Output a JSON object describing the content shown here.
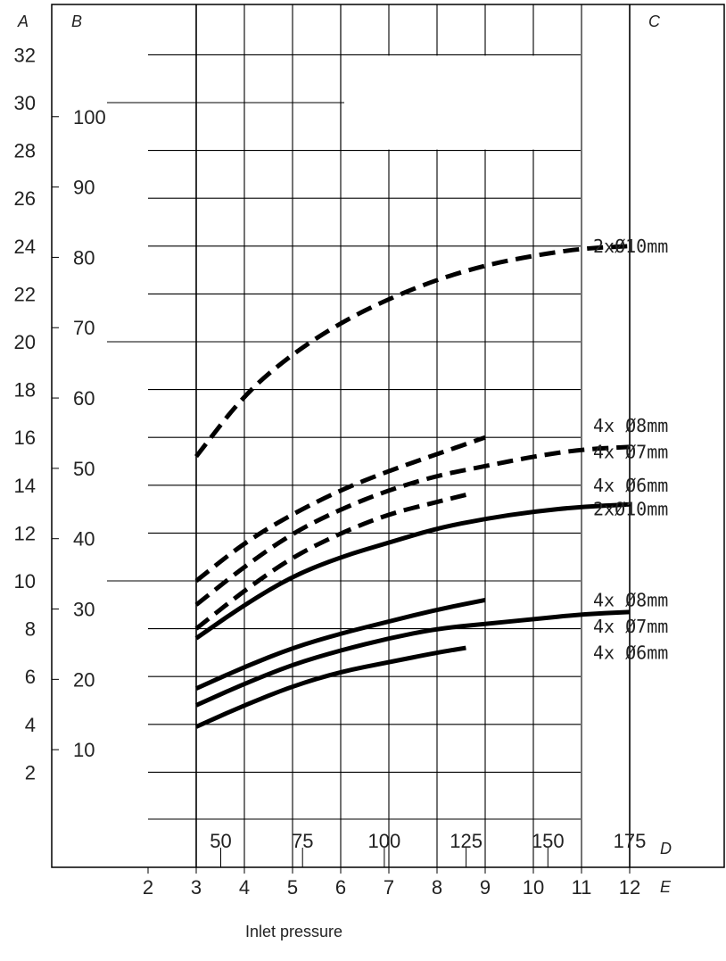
{
  "chart_data": {
    "type": "line",
    "corner_labels": {
      "a": "A",
      "b": "B",
      "c": "C",
      "d": "D",
      "e": "E"
    },
    "left_axis_a": {
      "ticks": [
        "2",
        "4",
        "6",
        "8",
        "10",
        "12",
        "14",
        "16",
        "18",
        "20",
        "22",
        "24",
        "26",
        "28",
        "30",
        "32"
      ],
      "range": [
        0,
        34
      ]
    },
    "left_axis_b": {
      "ticks": [
        "10",
        "20",
        "30",
        "40",
        "50",
        "60",
        "70",
        "80",
        "90",
        "100"
      ],
      "range": [
        0,
        115.6
      ]
    },
    "bottom_axis_d": {
      "ticks": [
        "50",
        "75",
        "100",
        "125",
        "150",
        "175"
      ],
      "range": [
        42.5,
        175
      ]
    },
    "bottom_axis_e": {
      "ticks": [
        "2",
        "3",
        "4",
        "5",
        "6",
        "7",
        "8",
        "9",
        "10",
        "11",
        "12"
      ],
      "range": [
        1,
        12
      ]
    },
    "xlabel": "Inlet pressure",
    "series": [
      {
        "name": "2xØ10mm",
        "style": "dashed",
        "label_y": 24,
        "x": [
          3,
          4,
          5,
          6,
          7,
          8,
          9,
          10,
          11,
          12
        ],
        "y": [
          15.2,
          17.8,
          19.5,
          20.8,
          21.8,
          22.6,
          23.2,
          23.6,
          23.9,
          24.0
        ]
      },
      {
        "name": "4x  Ø8mm",
        "style": "dashed",
        "label_y": 16.5,
        "x": [
          3,
          4,
          5,
          6,
          7,
          8,
          9
        ],
        "y": [
          10.0,
          11.6,
          12.8,
          13.8,
          14.6,
          15.3,
          16.0
        ]
      },
      {
        "name": "4x  Ø7mm",
        "style": "dashed",
        "label_y": 15.4,
        "x": [
          3,
          4,
          5,
          6,
          7,
          8,
          9,
          10,
          11,
          12
        ],
        "y": [
          9.0,
          10.6,
          12.0,
          13.0,
          13.8,
          14.4,
          14.8,
          15.2,
          15.5,
          15.6
        ]
      },
      {
        "name": "4x  Ø6mm",
        "style": "dashed",
        "label_y": 14.0,
        "x": [
          3,
          4,
          5,
          6,
          7,
          8,
          8.6
        ],
        "y": [
          8.0,
          9.6,
          11.0,
          12.0,
          12.8,
          13.3,
          13.6
        ]
      },
      {
        "name": "2xØ10mm",
        "style": "solid",
        "label_y": 13.0,
        "x": [
          3,
          4,
          5,
          6,
          7,
          8,
          9,
          10,
          11,
          12
        ],
        "y": [
          7.6,
          9.0,
          10.2,
          11.0,
          11.6,
          12.2,
          12.6,
          12.9,
          13.1,
          13.2
        ]
      },
      {
        "name": "4x  Ø8mm",
        "style": "solid",
        "label_y": 9.2,
        "x": [
          3,
          4,
          5,
          6,
          7,
          8,
          9
        ],
        "y": [
          5.5,
          6.4,
          7.2,
          7.8,
          8.3,
          8.8,
          9.2
        ]
      },
      {
        "name": "4x  Ø7mm",
        "style": "solid",
        "label_y": 8.1,
        "x": [
          3,
          4,
          5,
          6,
          7,
          8,
          9,
          10,
          11,
          12
        ],
        "y": [
          4.8,
          5.7,
          6.5,
          7.1,
          7.6,
          8.0,
          8.2,
          8.4,
          8.6,
          8.7
        ]
      },
      {
        "name": "4x  Ø6mm",
        "style": "solid",
        "label_y": 7.0,
        "x": [
          3,
          4,
          5,
          6,
          7,
          8,
          8.6
        ],
        "y": [
          3.9,
          4.8,
          5.6,
          6.2,
          6.6,
          7.0,
          7.2
        ]
      }
    ]
  }
}
